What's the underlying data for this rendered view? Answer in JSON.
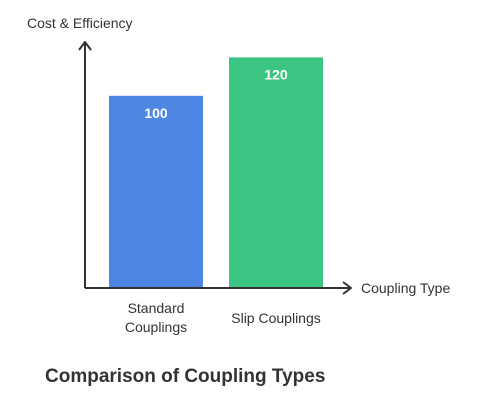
{
  "chart_data": {
    "type": "bar",
    "title": "Comparison of Coupling Types",
    "xlabel": "Coupling Type",
    "ylabel": "Cost & Efficiency",
    "categories": [
      "Standard Couplings",
      "Slip Couplings"
    ],
    "category_lines": [
      [
        "Standard",
        "Couplings"
      ],
      [
        "Slip Couplings"
      ]
    ],
    "values": [
      100,
      120
    ],
    "bar_colors": [
      "#4f86e3",
      "#3cc583"
    ],
    "ylim": [
      0,
      128
    ],
    "grid": false,
    "legend": "none",
    "data_labels": true
  },
  "colors": {
    "axis": "#333333",
    "text": "#333333",
    "bar_label": "#ffffff"
  }
}
